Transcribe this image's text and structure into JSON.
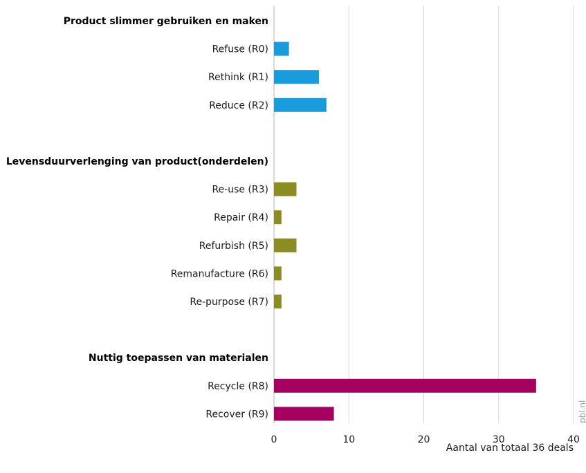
{
  "chart_data": {
    "type": "bar",
    "orientation": "horizontal",
    "xlabel": "Aantal van totaal 36 deals",
    "xlim": [
      0,
      40
    ],
    "xticks": [
      0,
      10,
      20,
      30,
      40
    ],
    "grid": "vertical",
    "source_note": "pbl.nl",
    "groups": [
      {
        "label": "Product slimmer gebruiken en maken",
        "color": "#1a9bdb",
        "bars": [
          {
            "category": "Refuse (R0)",
            "value": 2
          },
          {
            "category": "Rethink (R1)",
            "value": 6
          },
          {
            "category": "Reduce (R2)",
            "value": 7
          }
        ]
      },
      {
        "label": "Levensduurverlenging van product(onderdelen)",
        "color": "#8c8c24",
        "bars": [
          {
            "category": "Re-use (R3)",
            "value": 3
          },
          {
            "category": "Repair (R4)",
            "value": 1
          },
          {
            "category": "Refurbish (R5)",
            "value": 3
          },
          {
            "category": "Remanufacture (R6)",
            "value": 1
          },
          {
            "category": "Re-purpose (R7)",
            "value": 1
          }
        ]
      },
      {
        "label": "Nuttig toepassen van materialen",
        "color": "#a3005f",
        "bars": [
          {
            "category": "Recycle (R8)",
            "value": 35
          },
          {
            "category": "Recover (R9)",
            "value": 8
          }
        ]
      }
    ]
  }
}
